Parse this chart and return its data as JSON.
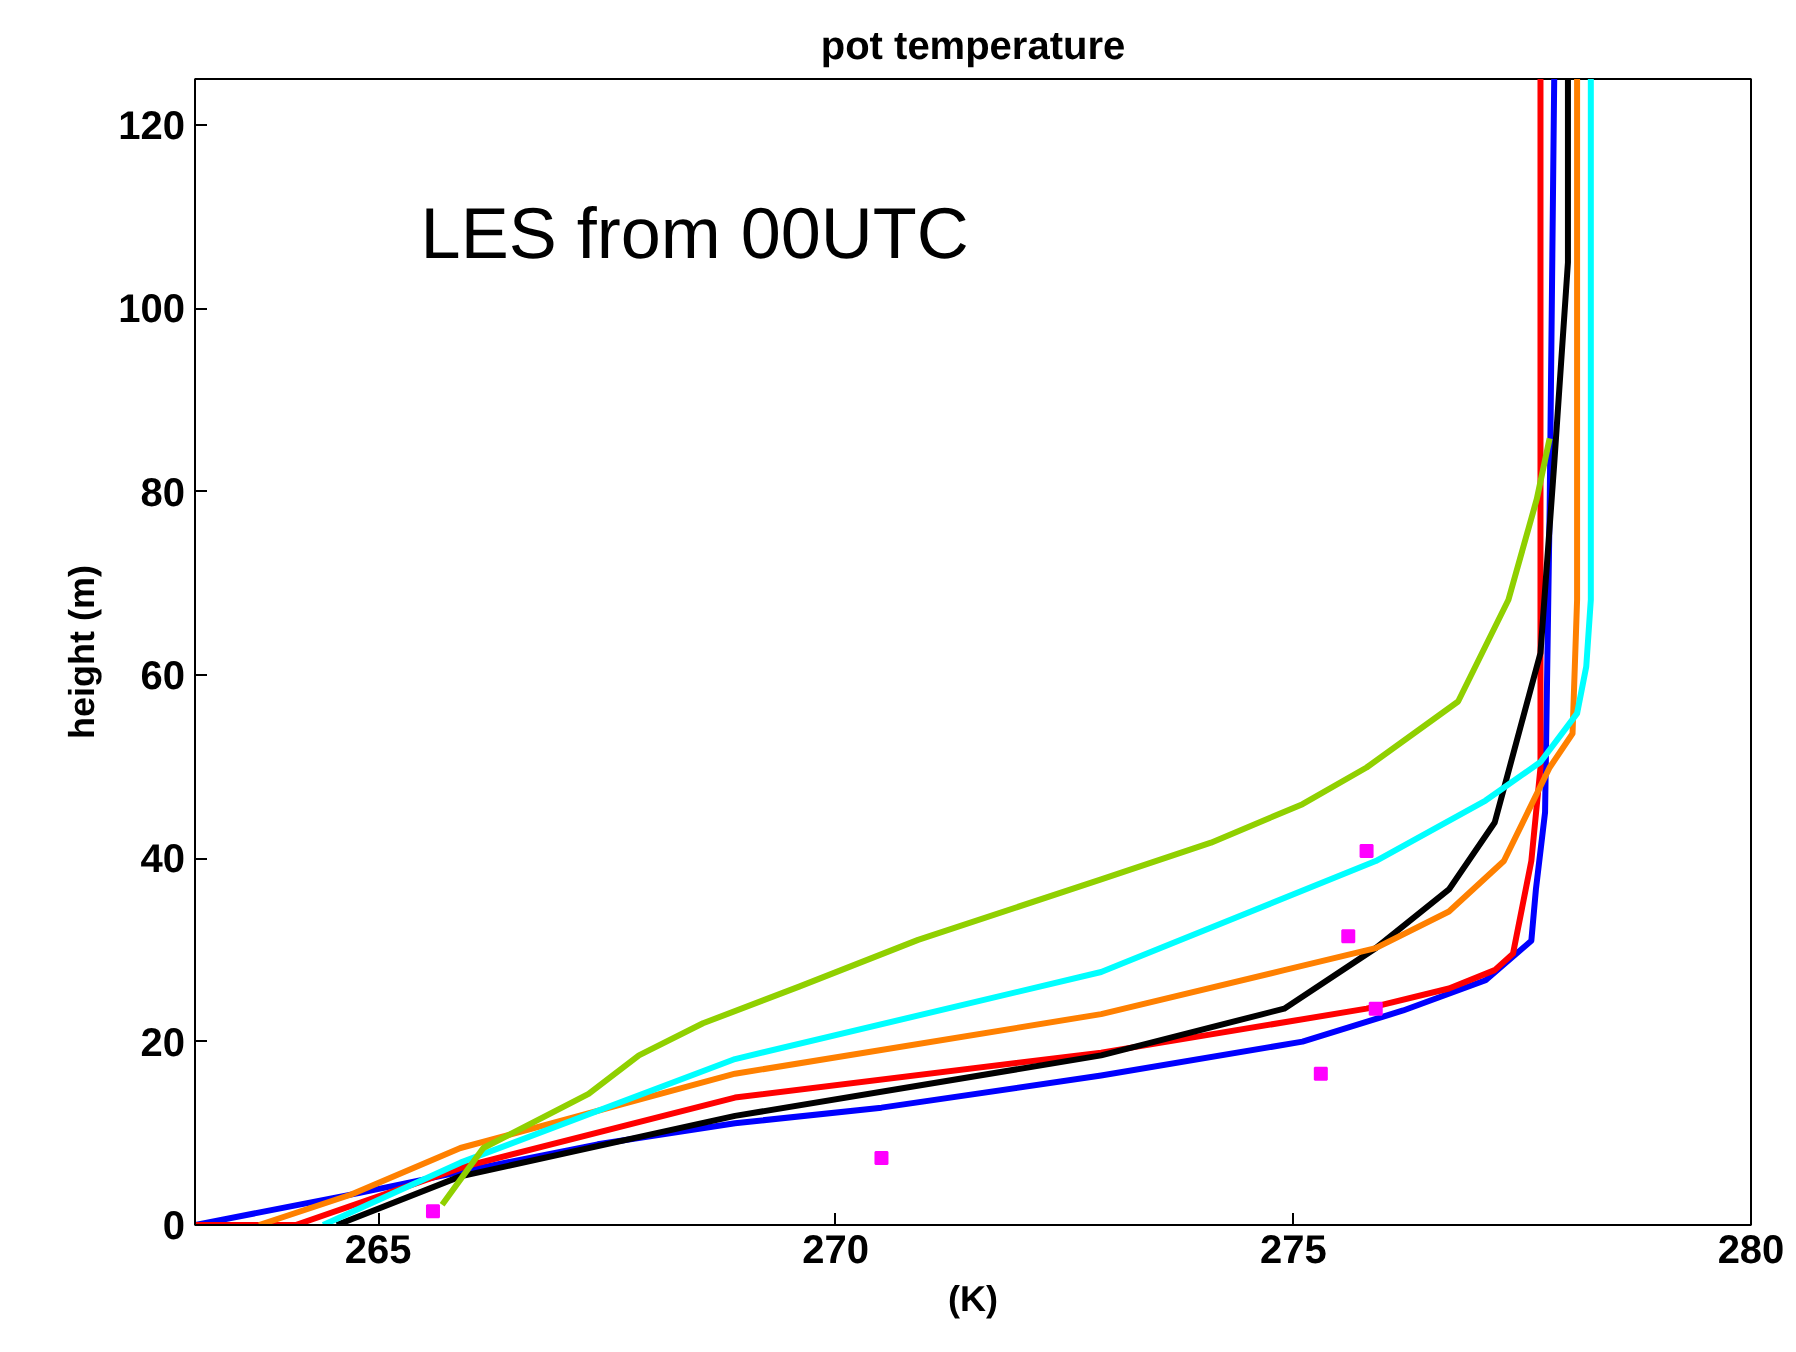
{
  "chart_data": {
    "type": "line",
    "title": "pot temperature",
    "xlabel": "(K)",
    "ylabel": "height (m)",
    "annotations": [
      "LES from 00UTC"
    ],
    "xlim": [
      263,
      280
    ],
    "xticks": [
      265,
      270,
      275,
      280
    ],
    "ylim": [
      0,
      125
    ],
    "yticks": [
      0,
      20,
      40,
      60,
      80,
      100,
      120
    ],
    "grid": false,
    "line_style": "solid",
    "marker": "none",
    "series": [
      {
        "color": "#0000ff",
        "x": [
          263.0,
          264.8,
          265.9,
          267.4,
          268.9,
          270.5,
          272.9,
          275.1,
          276.2,
          277.1,
          277.6,
          277.65,
          277.75,
          277.8,
          277.85
        ],
        "values": [
          0,
          3.5,
          5.8,
          8.8,
          11.1,
          12.8,
          16.3,
          20,
          23.4,
          26.7,
          31,
          36.6,
          45,
          78,
          125
        ]
      },
      {
        "color": "#ff0000",
        "x": [
          263.0,
          264.1,
          265.95,
          268.9,
          272.9,
          275.8,
          276.7,
          277.2,
          277.4,
          277.6,
          277.7,
          277.7
        ],
        "values": [
          0,
          0,
          6.4,
          13.9,
          18.8,
          23.6,
          25.8,
          27.8,
          29.6,
          39.7,
          49.9,
          125
        ]
      },
      {
        "color": "#000000",
        "x": [
          264.55,
          265.9,
          268.9,
          272.9,
          274.9,
          275.9,
          276.7,
          277.2,
          277.7,
          277.85,
          278.0,
          278.0
        ],
        "values": [
          0,
          5.3,
          11.9,
          18.5,
          23.6,
          30.2,
          36.6,
          43.9,
          62.4,
          83,
          105,
          125
        ]
      },
      {
        "color": "#ff8000",
        "x": [
          263.7,
          264.7,
          265.9,
          268.9,
          272.9,
          274.9,
          275.9,
          276.7,
          277.3,
          277.8,
          278.05,
          278.1,
          278.1
        ],
        "values": [
          0,
          3.3,
          8.4,
          16.5,
          23,
          27.8,
          30.2,
          34.2,
          39.7,
          49.9,
          53.6,
          68.2,
          125
        ]
      },
      {
        "color": "#00ffff",
        "x": [
          264.4,
          265.9,
          268.9,
          272.9,
          275.9,
          277.1,
          277.7,
          278.1,
          278.2,
          278.25,
          278.25
        ],
        "values": [
          0,
          6.8,
          18.1,
          27.6,
          39.7,
          46.3,
          50.5,
          55.8,
          60.9,
          68.2,
          125
        ]
      },
      {
        "color": "#90d000",
        "x": [
          265.7,
          266.15,
          267.3,
          267.85,
          268.55,
          269.6,
          270.9,
          272.9,
          274.1,
          275.1,
          275.8,
          276.8,
          277.35,
          277.66,
          277.8
        ],
        "values": [
          2.2,
          8.4,
          14.3,
          18.5,
          22,
          26,
          31.1,
          37.7,
          41.7,
          45.9,
          49.9,
          57.1,
          68.2,
          79.2,
          85.8
        ]
      },
      {
        "type": "scatter",
        "marker": "square",
        "color": "#ff00ff",
        "x": [
          265.6,
          270.5,
          275.3,
          275.9,
          275.6,
          275.8
        ],
        "values": [
          1.5,
          7.3,
          16.5,
          23.6,
          31.5,
          40.8
        ]
      }
    ]
  }
}
